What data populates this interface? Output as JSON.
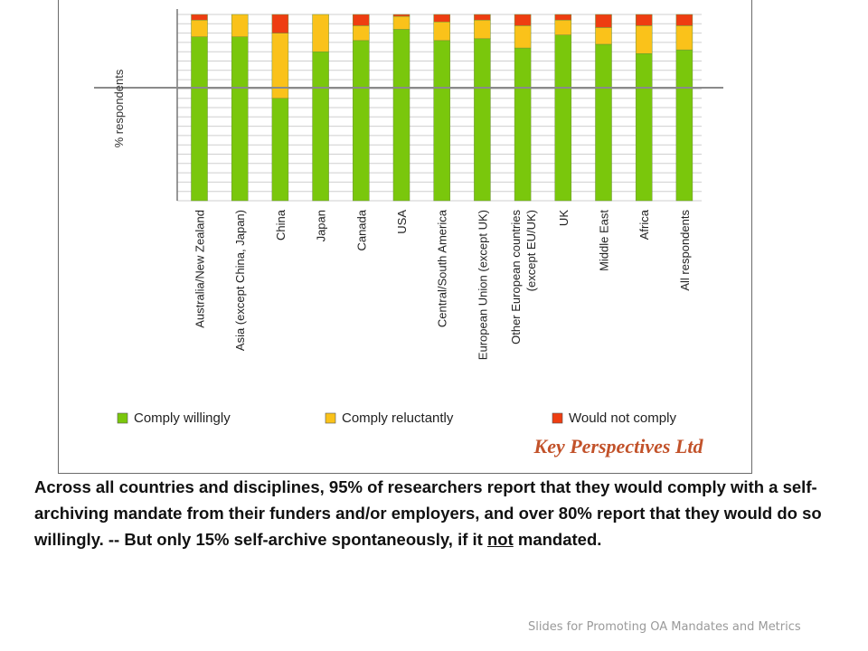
{
  "chart_data": {
    "type": "bar",
    "stacked": true,
    "ylabel": "% respondents",
    "categories": [
      "Australia/New Zealand",
      "Asia (except China, Japan)",
      "China",
      "Japan",
      "Canada",
      "USA",
      "Central/South America",
      "European Union (except UK)",
      "Other European countries (except EU/UK)",
      "UK",
      "Middle East",
      "Africa",
      "All respondents"
    ],
    "series": [
      {
        "name": "Comply willingly",
        "color": "#7ac70c",
        "values": [
          88,
          88,
          55,
          80,
          86,
          92,
          86,
          87,
          82,
          89,
          84,
          79,
          81
        ]
      },
      {
        "name": "Comply reluctantly",
        "color": "#fac21a",
        "values": [
          9,
          12,
          35,
          20,
          8,
          7,
          10,
          10,
          12,
          8,
          9,
          15,
          13
        ]
      },
      {
        "name": "Would not comply",
        "color": "#ee3d11",
        "values": [
          3,
          0,
          10,
          0,
          6,
          1,
          4,
          3,
          6,
          3,
          7,
          6,
          6
        ]
      }
    ],
    "ylim": [
      0,
      100
    ],
    "legend_position": "bottom",
    "logo_text": "Key Perspectives Ltd"
  },
  "caption": {
    "text_before_underline": "Across all countries and disciplines, 95% of researchers report that they would comply with a self-archiving mandate from their funders and/or employers, and over 80% report that they would do so willingly. -- But only 15% self-archive spontaneously, if it ",
    "underlined": "not",
    "text_after_underline": " mandated."
  },
  "footer": {
    "text": "Slides for Promoting OA Mandates and Metrics"
  }
}
